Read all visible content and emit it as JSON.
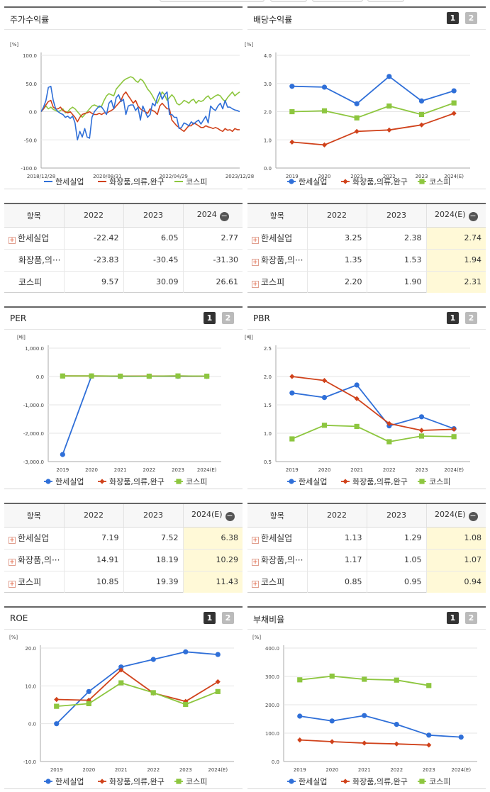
{
  "colors": {
    "company": "#2f6fd8",
    "industry": "#d0421b",
    "kospi": "#8dc63f"
  },
  "legend": {
    "company": "한세실업",
    "industry": "화장품,의류,완구",
    "kospi": "코스피"
  },
  "page_buttons": {
    "one": "1",
    "two": "2"
  },
  "panels": {
    "stock": {
      "title": "주가수익률"
    },
    "dividend": {
      "title": "배당수익률"
    },
    "per": {
      "title": "PER"
    },
    "pbr": {
      "title": "PBR"
    },
    "roe": {
      "title": "ROE"
    },
    "debt": {
      "title": "부채비율"
    }
  },
  "chart_data": [
    {
      "id": "stock",
      "type": "line",
      "unit": "[%]",
      "x_ticks": [
        "2018/12/28",
        "2020/08/31",
        "2022/04/29",
        "2023/12/28"
      ],
      "ylim": [
        -100,
        100
      ],
      "y_ticks": [
        "100.0",
        "50.0",
        "0.0",
        "-50.0",
        "-100.0"
      ],
      "series": [
        {
          "name": "한세실업",
          "values": [
            0,
            8,
            20,
            43,
            45,
            20,
            5,
            0,
            -3,
            -5,
            -10,
            -8,
            -12,
            -8,
            -20,
            -50,
            -35,
            -45,
            -30,
            -45,
            -47,
            -10,
            0,
            5,
            10,
            8,
            2,
            -5,
            15,
            20,
            5,
            25,
            30,
            18,
            22,
            -5,
            10,
            12,
            12,
            2,
            8,
            -15,
            10,
            0,
            -10,
            -5,
            15,
            10,
            25,
            35,
            22,
            30,
            35,
            -5,
            -5,
            -10,
            -10,
            -30,
            -28,
            -20,
            -22,
            -25,
            -18,
            -22,
            -18,
            -15,
            -22,
            -15,
            -8,
            -20,
            10,
            5,
            2,
            10,
            15,
            5,
            20,
            8,
            8,
            5,
            3,
            2,
            0
          ]
        },
        {
          "name": "화장품,의류,완구",
          "values": [
            0,
            5,
            12,
            18,
            20,
            8,
            5,
            5,
            8,
            2,
            0,
            -2,
            0,
            -5,
            -10,
            -18,
            -10,
            -5,
            -3,
            -2,
            0,
            -3,
            -5,
            -5,
            -3,
            -5,
            -2,
            -3,
            0,
            2,
            5,
            10,
            15,
            20,
            30,
            35,
            28,
            22,
            15,
            20,
            10,
            5,
            2,
            0,
            -3,
            5,
            2,
            0,
            -5,
            10,
            15,
            10,
            5,
            5,
            -15,
            -20,
            -25,
            -28,
            -32,
            -35,
            -30,
            -25,
            -25,
            -20,
            -22,
            -25,
            -28,
            -28,
            -25,
            -27,
            -28,
            -30,
            -28,
            -30,
            -33,
            -35,
            -30,
            -33,
            -32,
            -35,
            -30,
            -32,
            -32
          ]
        },
        {
          "name": "코스피",
          "values": [
            0,
            5,
            10,
            5,
            8,
            4,
            2,
            0,
            2,
            5,
            -2,
            0,
            5,
            8,
            5,
            0,
            -5,
            -10,
            -5,
            0,
            5,
            10,
            12,
            10,
            8,
            10,
            20,
            28,
            32,
            30,
            28,
            40,
            45,
            50,
            55,
            58,
            60,
            62,
            60,
            55,
            52,
            58,
            55,
            48,
            40,
            35,
            28,
            20,
            15,
            25,
            35,
            30,
            20,
            25,
            30,
            25,
            15,
            12,
            15,
            20,
            18,
            15,
            20,
            22,
            15,
            20,
            18,
            20,
            25,
            28,
            22,
            25,
            28,
            30,
            28,
            22,
            18,
            25,
            30,
            35,
            28,
            32,
            35
          ]
        }
      ]
    },
    {
      "id": "dividend",
      "type": "line",
      "unit": "[%]",
      "categories": [
        "2019",
        "2020",
        "2021",
        "2022",
        "2023",
        "2024(E)"
      ],
      "ylim": [
        0,
        4
      ],
      "y_ticks": [
        "4.0",
        "3.0",
        "2.0",
        "1.0",
        "0.0"
      ],
      "series": [
        {
          "name": "한세실업",
          "values": [
            2.9,
            2.87,
            2.28,
            3.25,
            2.38,
            2.74
          ]
        },
        {
          "name": "화장품,의류,완구",
          "values": [
            0.92,
            0.82,
            1.3,
            1.35,
            1.53,
            1.94
          ]
        },
        {
          "name": "코스피",
          "values": [
            2.0,
            2.03,
            1.78,
            2.2,
            1.9,
            2.31
          ]
        }
      ]
    },
    {
      "id": "per",
      "type": "line",
      "unit": "[배]",
      "categories": [
        "2019",
        "2020",
        "2021",
        "2022",
        "2023",
        "2024(E)"
      ],
      "ylim": [
        -3000,
        1000
      ],
      "y_ticks": [
        "1,000.0",
        "0.0",
        "-1,000.0",
        "-2,000.0",
        "-3,000.0"
      ],
      "series": [
        {
          "name": "한세실업",
          "values": [
            -2750,
            15,
            5,
            7.19,
            7.52,
            6.38
          ]
        },
        {
          "name": "화장품,의류,완구",
          "values": [
            20,
            18,
            15,
            14.91,
            18.19,
            10.29
          ]
        },
        {
          "name": "코스피",
          "values": [
            18,
            20,
            12,
            10.85,
            19.39,
            11.43
          ]
        }
      ]
    },
    {
      "id": "pbr",
      "type": "line",
      "unit": "[배]",
      "categories": [
        "2019",
        "2020",
        "2021",
        "2022",
        "2023",
        "2024(E)"
      ],
      "ylim": [
        0.5,
        2.5
      ],
      "y_ticks": [
        "2.5",
        "2.0",
        "1.5",
        "1.0",
        "0.5"
      ],
      "series": [
        {
          "name": "한세실업",
          "values": [
            1.71,
            1.63,
            1.85,
            1.13,
            1.29,
            1.08
          ]
        },
        {
          "name": "화장품,의류,완구",
          "values": [
            2.0,
            1.93,
            1.61,
            1.17,
            1.05,
            1.07
          ]
        },
        {
          "name": "코스피",
          "values": [
            0.9,
            1.14,
            1.12,
            0.85,
            0.95,
            0.94
          ]
        }
      ]
    },
    {
      "id": "roe",
      "type": "line",
      "unit": "[%]",
      "categories": [
        "2019",
        "2020",
        "2021",
        "2022",
        "2023",
        "2024(E)"
      ],
      "ylim": [
        -10,
        20
      ],
      "y_ticks": [
        "20.0",
        "10.0",
        "0.0",
        "-10.0"
      ],
      "series": [
        {
          "name": "한세실업",
          "values": [
            0.0,
            8.5,
            15.0,
            17.0,
            19.0,
            18.3
          ]
        },
        {
          "name": "화장품,의류,완구",
          "values": [
            6.4,
            6.2,
            14.2,
            8.1,
            5.9,
            11.1
          ]
        },
        {
          "name": "코스피",
          "values": [
            4.6,
            5.3,
            10.8,
            8.2,
            5.1,
            8.5
          ]
        }
      ]
    },
    {
      "id": "debt",
      "type": "line",
      "unit": "[%]",
      "categories": [
        "2019",
        "2020",
        "2021",
        "2022",
        "2023",
        "2024(E)"
      ],
      "ylim": [
        0,
        400
      ],
      "y_ticks": [
        "400.0",
        "300.0",
        "200.0",
        "100.0",
        "0.0"
      ],
      "series": [
        {
          "name": "한세실업",
          "values": [
            160,
            143,
            162,
            131,
            93,
            86
          ]
        },
        {
          "name": "화장품,의류,완구",
          "values": [
            76,
            70,
            65,
            62,
            58,
            null
          ]
        },
        {
          "name": "코스피",
          "values": [
            288,
            301,
            290,
            287,
            268,
            null
          ]
        }
      ]
    }
  ],
  "tables": {
    "stock": {
      "header": [
        "항목",
        "2022",
        "2023",
        "2024"
      ],
      "rows": [
        {
          "name": "한세실업",
          "plus": true,
          "values": [
            "-22.42",
            "6.05",
            "2.77"
          ]
        },
        {
          "name": "화장품,의···",
          "plus": false,
          "values": [
            "-23.83",
            "-30.45",
            "-31.30"
          ]
        },
        {
          "name": "코스피",
          "plus": false,
          "values": [
            "9.57",
            "30.09",
            "26.61"
          ]
        }
      ]
    },
    "dividend": {
      "header": [
        "항목",
        "2022",
        "2023",
        "2024(E)"
      ],
      "rows": [
        {
          "name": "한세실업",
          "plus": true,
          "values": [
            "3.25",
            "2.38",
            "2.74"
          ]
        },
        {
          "name": "화장품,의···",
          "plus": true,
          "values": [
            "1.35",
            "1.53",
            "1.94"
          ]
        },
        {
          "name": "코스피",
          "plus": true,
          "values": [
            "2.20",
            "1.90",
            "2.31"
          ]
        }
      ]
    },
    "per": {
      "header": [
        "항목",
        "2022",
        "2023",
        "2024(E)"
      ],
      "rows": [
        {
          "name": "한세실업",
          "plus": true,
          "values": [
            "7.19",
            "7.52",
            "6.38"
          ]
        },
        {
          "name": "화장품,의···",
          "plus": true,
          "values": [
            "14.91",
            "18.19",
            "10.29"
          ]
        },
        {
          "name": "코스피",
          "plus": true,
          "values": [
            "10.85",
            "19.39",
            "11.43"
          ]
        }
      ]
    },
    "pbr": {
      "header": [
        "항목",
        "2022",
        "2023",
        "2024(E)"
      ],
      "rows": [
        {
          "name": "한세실업",
          "plus": true,
          "values": [
            "1.13",
            "1.29",
            "1.08"
          ]
        },
        {
          "name": "화장품,의···",
          "plus": true,
          "values": [
            "1.17",
            "1.05",
            "1.07"
          ]
        },
        {
          "name": "코스피",
          "plus": true,
          "values": [
            "0.85",
            "0.95",
            "0.94"
          ]
        }
      ]
    }
  }
}
